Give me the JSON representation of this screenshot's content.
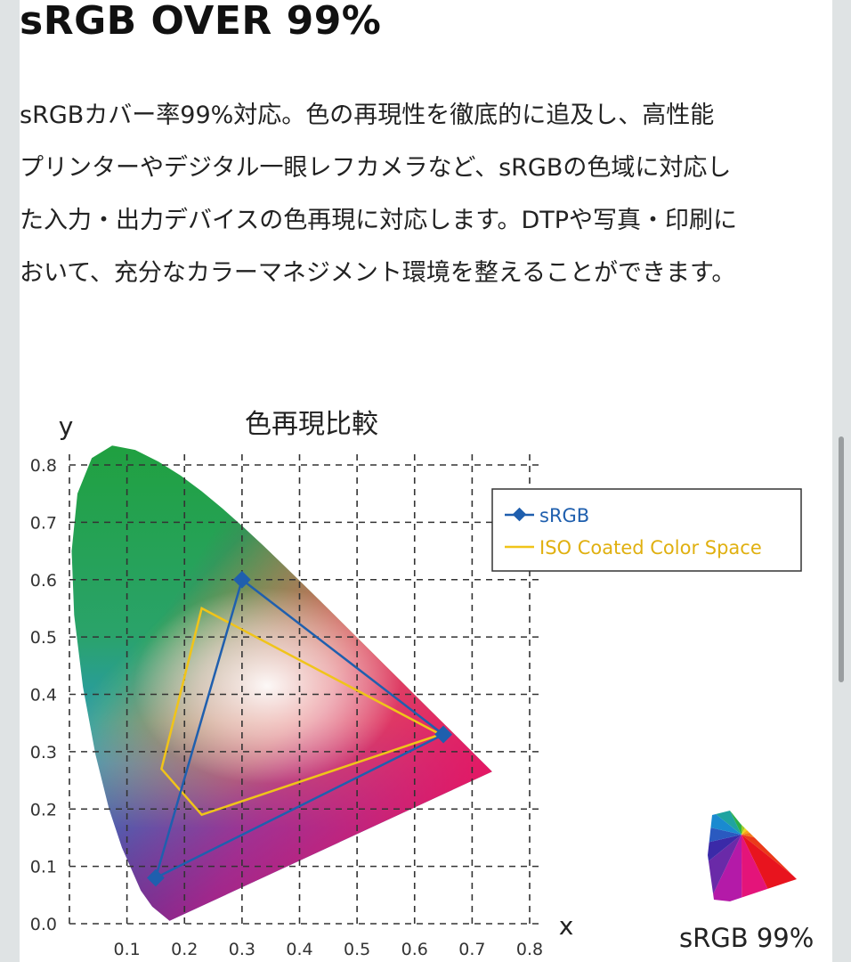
{
  "heading": "sRGB OVER 99%",
  "description_lines": [
    "sRGBカバー率99%対応。色の再現性を徹底的に追及し、高性能",
    "プリンターやデジタル一眼レフカメラなど、sRGBの色域に対応し",
    "た入力・出力デバイスの色再現に対応します。DTPや写真・印刷に",
    "おいて、充分なカラーマネジメント環境を整えることができます。"
  ],
  "badge": {
    "label": "sRGB 99%",
    "icon": "color-gamut-icon"
  },
  "chart_data": {
    "type": "line",
    "title": "色再現比較",
    "xlabel": "x",
    "ylabel": "y",
    "xlim": [
      0.0,
      0.8
    ],
    "ylim": [
      0.0,
      0.8
    ],
    "x_ticks": [
      "0.1",
      "0.2",
      "0.3",
      "0.4",
      "0.5",
      "0.6",
      "0.7",
      "0.8"
    ],
    "y_ticks": [
      "0.0",
      "0.1",
      "0.2",
      "0.3",
      "0.4",
      "0.5",
      "0.6",
      "0.7",
      "0.8"
    ],
    "grid": true,
    "legend_position": "top-right",
    "background": "CIE 1931 chromaticity diagram",
    "series": [
      {
        "name": "sRGB",
        "color": "#1f5fae",
        "marker": "diamond",
        "points": [
          [
            0.3,
            0.6
          ],
          [
            0.65,
            0.33
          ],
          [
            0.15,
            0.08
          ]
        ]
      },
      {
        "name": "ISO Coated Color Space",
        "color": "#f0c419",
        "marker": "none",
        "points": [
          [
            0.23,
            0.55
          ],
          [
            0.645,
            0.33
          ],
          [
            0.23,
            0.19
          ],
          [
            0.16,
            0.27
          ]
        ]
      }
    ]
  }
}
